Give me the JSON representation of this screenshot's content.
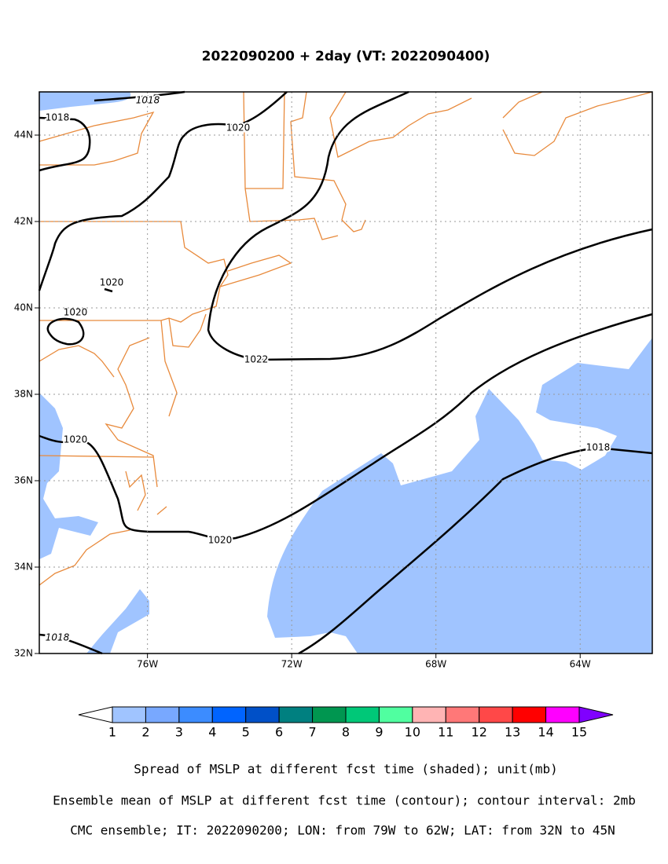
{
  "title": "2022090200 + 2day (VT: 2022090400)",
  "map": {
    "lonlim": [
      -79,
      -62
    ],
    "latlim": [
      32,
      45
    ],
    "lon_ticks": [
      {
        "value": -76,
        "label": "76W"
      },
      {
        "value": -72,
        "label": "72W"
      },
      {
        "value": -68,
        "label": "68W"
      },
      {
        "value": -64,
        "label": "64W"
      }
    ],
    "lat_ticks": [
      {
        "value": 44,
        "label": "44N"
      },
      {
        "value": 42,
        "label": "42N"
      },
      {
        "value": 40,
        "label": "40N"
      },
      {
        "value": 38,
        "label": "38N"
      },
      {
        "value": 36,
        "label": "36N"
      },
      {
        "value": 34,
        "label": "34N"
      },
      {
        "value": 32,
        "label": "32N"
      }
    ],
    "contour_labels": [
      1018,
      1018,
      1020,
      1020,
      1020,
      1022,
      1020,
      1020,
      1018,
      1018
    ]
  },
  "colorbar": {
    "levels": [
      1,
      2,
      3,
      4,
      5,
      6,
      7,
      8,
      9,
      10,
      11,
      12,
      13,
      14,
      15
    ],
    "under_color": "#ffffff",
    "colors": [
      "#a0c4ff",
      "#78a8ff",
      "#3c8cff",
      "#0064ff",
      "#0050c8",
      "#008080",
      "#009650",
      "#00c878",
      "#50ffa0",
      "#ffb4b4",
      "#ff7878",
      "#ff4848",
      "#ff0000",
      "#ff00ff"
    ],
    "over_color": "#8000ff"
  },
  "captions": [
    "Spread of MSLP at different fcst time (shaded); unit(mb)",
    "Ensemble mean of MSLP at different fcst time (contour); contour interval: 2mb",
    "CMC ensemble; IT: 2022090200; LON: from 79W to 62W; LAT: from 32N to 45N"
  ]
}
